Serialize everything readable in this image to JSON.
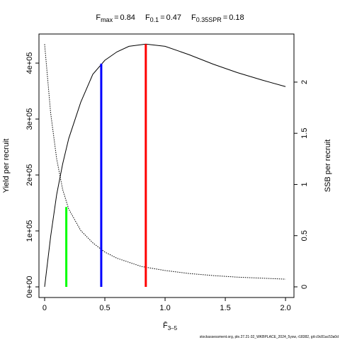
{
  "chart_data": {
    "type": "line",
    "operator": "=",
    "reference_lines": [
      {
        "symbol": "F",
        "subscript": "max",
        "x": 0.84,
        "y": 434000,
        "color": "#ff0000"
      },
      {
        "symbol": "F",
        "subscript": "0.1",
        "x": 0.47,
        "y": 399000,
        "color": "#0000ff"
      },
      {
        "symbol": "F",
        "subscript": "0.35SPR",
        "x": 0.18,
        "y": 0.78,
        "axis": "y2",
        "color": "#00ff00"
      }
    ],
    "xlabel": "F̄",
    "xlabel_sub": "3–5",
    "ylabel": "Yield per recruit",
    "y2label": "SSB per recruit",
    "footer": "stockassessment.org, ple.27.21-32_WKBPLACE_2024_5ysw, r18382, git:c9c81ac53a0d",
    "series": [
      {
        "name": "Yield per recruit",
        "color": "#000000",
        "dash": "solid",
        "x": [
          0,
          0.05,
          0.1,
          0.15,
          0.2,
          0.3,
          0.4,
          0.5,
          0.6,
          0.7,
          0.84,
          1.0,
          1.2,
          1.4,
          1.6,
          1.8,
          2.0
        ],
        "values": [
          0,
          90000,
          165000,
          220000,
          265000,
          330000,
          380000,
          405000,
          420000,
          430000,
          434000,
          430000,
          415000,
          398000,
          383000,
          370000,
          358000
        ]
      },
      {
        "name": "SSB per recruit",
        "color": "#000000",
        "dash": "dotted",
        "axis": "y2",
        "x": [
          0,
          0.05,
          0.1,
          0.15,
          0.2,
          0.3,
          0.4,
          0.5,
          0.6,
          0.8,
          1.0,
          1.2,
          1.4,
          1.6,
          1.8,
          2.0
        ],
        "values": [
          2.37,
          1.7,
          1.25,
          0.95,
          0.76,
          0.55,
          0.43,
          0.34,
          0.28,
          0.2,
          0.16,
          0.13,
          0.11,
          0.095,
          0.085,
          0.075
        ]
      }
    ],
    "xlim": [
      -0.047,
      2.07
    ],
    "xticks": [
      0,
      0.5,
      {
        "value": 1,
        "label": "1.0"
      },
      1.5,
      {
        "value": 2,
        "label": "2.0"
      }
    ],
    "ylim": [
      -19000,
      452000
    ],
    "yticks": [
      {
        "value": 0,
        "label": "0e+00"
      },
      {
        "value": 100000,
        "label": "1e+05"
      },
      {
        "value": 200000,
        "label": "2e+05"
      },
      {
        "value": 300000,
        "label": "3e+05"
      },
      {
        "value": 400000,
        "label": "4e+05"
      }
    ],
    "y2lim": [
      -0.104,
      2.47
    ],
    "y2ticks": [
      0,
      0.5,
      1,
      1.5,
      2
    ]
  }
}
